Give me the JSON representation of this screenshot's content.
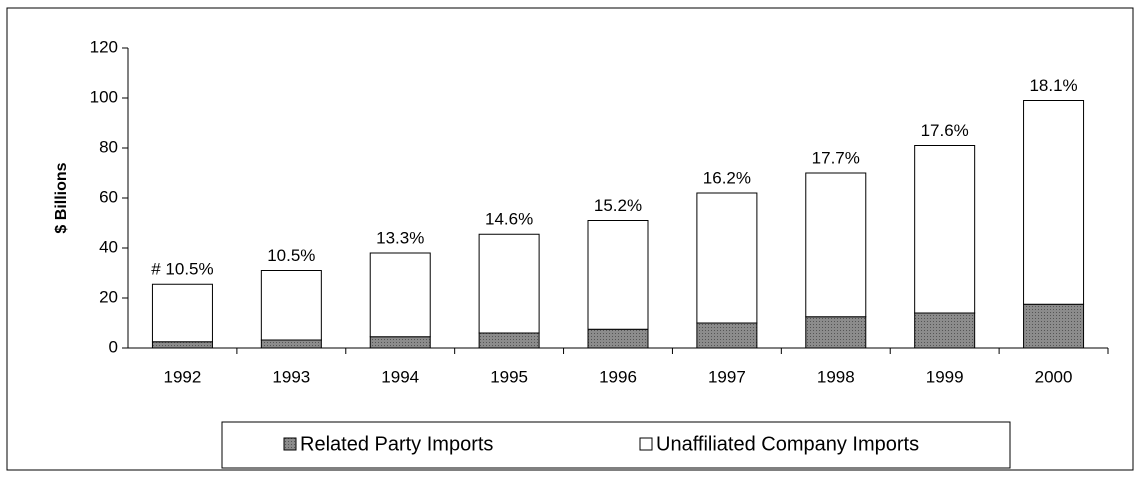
{
  "chart_data": {
    "type": "stacked_bar",
    "y_label": "$ Billions",
    "categories": [
      "1992",
      "1993",
      "1994",
      "1995",
      "1996",
      "1997",
      "1998",
      "1999",
      "2000"
    ],
    "series": [
      {
        "name": "Related Party Imports",
        "color": "#8c8c8c",
        "values": [
          2.5,
          3.2,
          4.5,
          6,
          7.5,
          10,
          12.5,
          14,
          17.5
        ]
      },
      {
        "name": "Unaffiliated Company Imports",
        "color": "#ffffff",
        "values": [
          23,
          27.8,
          33.5,
          39.5,
          43.5,
          52,
          57.5,
          67,
          81.5
        ]
      }
    ],
    "bar_labels": [
      "# 10.5%",
      "10.5%",
      "13.3%",
      "14.6%",
      "15.2%",
      "16.2%",
      "17.7%",
      "17.6%",
      "18.1%"
    ],
    "ylim": [
      0,
      120
    ],
    "yticks": [
      0,
      20,
      40,
      60,
      80,
      100,
      120
    ],
    "grid": false,
    "legend": "bottom"
  }
}
